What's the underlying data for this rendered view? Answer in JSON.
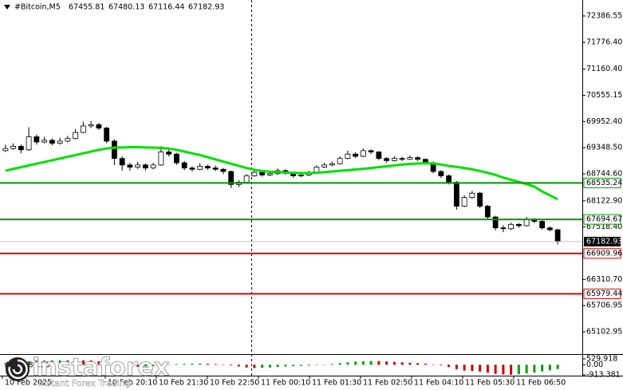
{
  "chart_data": {
    "type": "candlestick",
    "header": {
      "symbol": "#Bitcoin,M5"
    },
    "ylim": [
      64661.7,
      72754.4
    ],
    "yticks": [
      72386.55,
      {
        "value": 71776.4,
        "label": "71776.40"
      },
      {
        "value": 71160.4,
        "label": "71160.40"
      },
      70555.15,
      {
        "value": 69952.4,
        "label": "69952.40"
      },
      {
        "value": 69348.5,
        "label": "69348.50"
      },
      {
        "value": 68744.6,
        "label": "68744.60"
      },
      {
        "value": 68122.9,
        "label": "68122.90"
      },
      {
        "value": 67518.4,
        "label": "67518.40"
      },
      {
        "value": 66310.7,
        "label": "66310.70"
      },
      65706.95,
      65102.95
    ],
    "time_labels": [
      "10 Feb 2025",
      "10 Feb 20:10",
      "10 Feb 21:30",
      "10 Feb 22:50",
      "11 Feb 00:10",
      "11 Feb 01:30",
      "11 Feb 02:50",
      "11 Feb 04:10",
      "11 Feb 05:30",
      "11 Feb 06:50"
    ],
    "candles": [
      [
        69280,
        69420,
        69250,
        69330
      ],
      [
        69330,
        69450,
        69300,
        69380
      ],
      [
        69380,
        69420,
        69220,
        69300
      ],
      [
        69300,
        69820,
        69280,
        69600
      ],
      [
        69600,
        69650,
        69420,
        69480
      ],
      [
        69480,
        69600,
        69450,
        69520
      ],
      [
        69520,
        69560,
        69400,
        69450
      ],
      [
        69450,
        69580,
        69420,
        69500
      ],
      [
        69500,
        69620,
        69470,
        69560
      ],
      [
        69560,
        69780,
        69540,
        69700
      ],
      [
        69700,
        69950,
        69680,
        69850
      ],
      [
        69850,
        69960,
        69800,
        69880
      ],
      [
        69880,
        69920,
        69760,
        69800
      ],
      [
        69800,
        69830,
        69450,
        69500
      ],
      [
        69500,
        69540,
        68950,
        69100
      ],
      [
        69100,
        69150,
        68820,
        68950
      ],
      [
        68950,
        69000,
        68820,
        68900
      ],
      [
        68900,
        69020,
        68860,
        68950
      ],
      [
        68950,
        68990,
        68820,
        68880
      ],
      [
        68880,
        69000,
        68850,
        68950
      ],
      [
        68950,
        69380,
        68930,
        69250
      ],
      [
        69250,
        69320,
        69150,
        69200
      ],
      [
        69200,
        69230,
        68950,
        69000
      ],
      [
        69000,
        69040,
        68830,
        68880
      ],
      [
        68880,
        68920,
        68800,
        68850
      ],
      [
        68850,
        68990,
        68830,
        68920
      ],
      [
        68920,
        68960,
        68840,
        68880
      ],
      [
        68880,
        68940,
        68810,
        68850
      ],
      [
        68850,
        68880,
        68740,
        68800
      ],
      [
        68800,
        68820,
        68420,
        68500
      ],
      [
        68500,
        68600,
        68440,
        68550
      ],
      [
        68550,
        68740,
        68530,
        68700
      ],
      [
        68700,
        68850,
        68680,
        68780
      ],
      [
        68780,
        68810,
        68680,
        68720
      ],
      [
        68720,
        68800,
        68690,
        68750
      ],
      [
        68750,
        68870,
        68720,
        68820
      ],
      [
        68820,
        68850,
        68720,
        68760
      ],
      [
        68760,
        68790,
        68660,
        68700
      ],
      [
        68700,
        68770,
        68670,
        68720
      ],
      [
        68720,
        68820,
        68700,
        68780
      ],
      [
        68780,
        68940,
        68760,
        68900
      ],
      [
        68900,
        69000,
        68880,
        68950
      ],
      [
        68950,
        69030,
        68920,
        68980
      ],
      [
        68980,
        69150,
        68960,
        69100
      ],
      [
        69100,
        69280,
        69080,
        69200
      ],
      [
        69200,
        69240,
        69110,
        69150
      ],
      [
        69150,
        69330,
        69130,
        69280
      ],
      [
        69280,
        69310,
        69200,
        69250
      ],
      [
        69250,
        69270,
        69060,
        69100
      ],
      [
        69100,
        69130,
        69000,
        69050
      ],
      [
        69050,
        69150,
        69030,
        69100
      ],
      [
        69100,
        69140,
        69040,
        69080
      ],
      [
        69080,
        69170,
        69060,
        69120
      ],
      [
        69120,
        69150,
        69040,
        69080
      ],
      [
        69080,
        69100,
        68960,
        69000
      ],
      [
        69000,
        69030,
        68760,
        68800
      ],
      [
        68800,
        68830,
        68650,
        68700
      ],
      [
        68700,
        68730,
        68500,
        68550
      ],
      [
        68550,
        68580,
        67920,
        68000
      ],
      [
        68000,
        68250,
        67980,
        68200
      ],
      [
        68200,
        68350,
        68170,
        68300
      ],
      [
        68300,
        68330,
        67960,
        68000
      ],
      [
        68000,
        68030,
        67700,
        67750
      ],
      [
        67750,
        67780,
        67440,
        67500
      ],
      [
        67500,
        67560,
        67400,
        67480
      ],
      [
        67480,
        67620,
        67450,
        67580
      ],
      [
        67580,
        67610,
        67500,
        67550
      ],
      [
        67550,
        67750,
        67530,
        67700
      ],
      [
        67700,
        67730,
        67610,
        67650
      ],
      [
        67650,
        67680,
        67460,
        67500
      ],
      [
        67500,
        67530,
        67420,
        67455.81
      ],
      [
        67455.81,
        67480.13,
        67116.44,
        67182.93
      ]
    ],
    "ma": {
      "color": "#00e000",
      "values": [
        68820,
        68860,
        68900,
        68940,
        68980,
        69020,
        69060,
        69100,
        69140,
        69180,
        69220,
        69260,
        69300,
        69330,
        69350,
        69355,
        69360,
        69360,
        69355,
        69350,
        69345,
        69330,
        69300,
        69260,
        69220,
        69180,
        69130,
        69080,
        69030,
        68980,
        68930,
        68880,
        68840,
        68810,
        68795,
        68785,
        68775,
        68768,
        68764,
        68764,
        68770,
        68785,
        68800,
        68815,
        68830,
        68845,
        68860,
        68880,
        68900,
        68920,
        68940,
        68960,
        68975,
        68985,
        68990,
        68985,
        68960,
        68930,
        68905,
        68880,
        68850,
        68810,
        68770,
        68720,
        68660,
        68610,
        68560,
        68510,
        68450,
        68340,
        68250,
        68160
      ]
    },
    "levels": [
      {
        "value": 68535.24,
        "color": "#009900"
      },
      {
        "value": 67694.67,
        "color": "#009900"
      },
      {
        "value": 66909.96,
        "color": "#dd0000"
      },
      {
        "value": 65979.44,
        "color": "#dd0000"
      }
    ],
    "ao": {
      "name": "AO",
      "ylim": [
        -913.381,
        529.918
      ],
      "yticks": [
        529.918,
        {
          "value": 0,
          "label": "0.00"
        },
        -913.381
      ],
      "up_color": "#00a000",
      "down_color": "#cc0000",
      "values": [
        150,
        200,
        250,
        320,
        350,
        380,
        390,
        400,
        410,
        420,
        400,
        380,
        320,
        200,
        50,
        -80,
        -150,
        -180,
        -160,
        -120,
        -50,
        20,
        60,
        80,
        100,
        110,
        90,
        60,
        20,
        -60,
        -150,
        -250,
        -300,
        -280,
        -250,
        -200,
        -150,
        -120,
        -100,
        -80,
        -40,
        20,
        80,
        150,
        220,
        280,
        320,
        340,
        330,
        300,
        260,
        220,
        180,
        150,
        100,
        30,
        -60,
        -200,
        -400,
        -520,
        -560,
        -620,
        -720,
        -820,
        -880,
        -900,
        -860,
        -780,
        -700,
        -600,
        -500,
        -389.239
      ]
    }
  },
  "watermark": {
    "brand": "instaforex",
    "tagline": "Instant Forex Trading"
  }
}
